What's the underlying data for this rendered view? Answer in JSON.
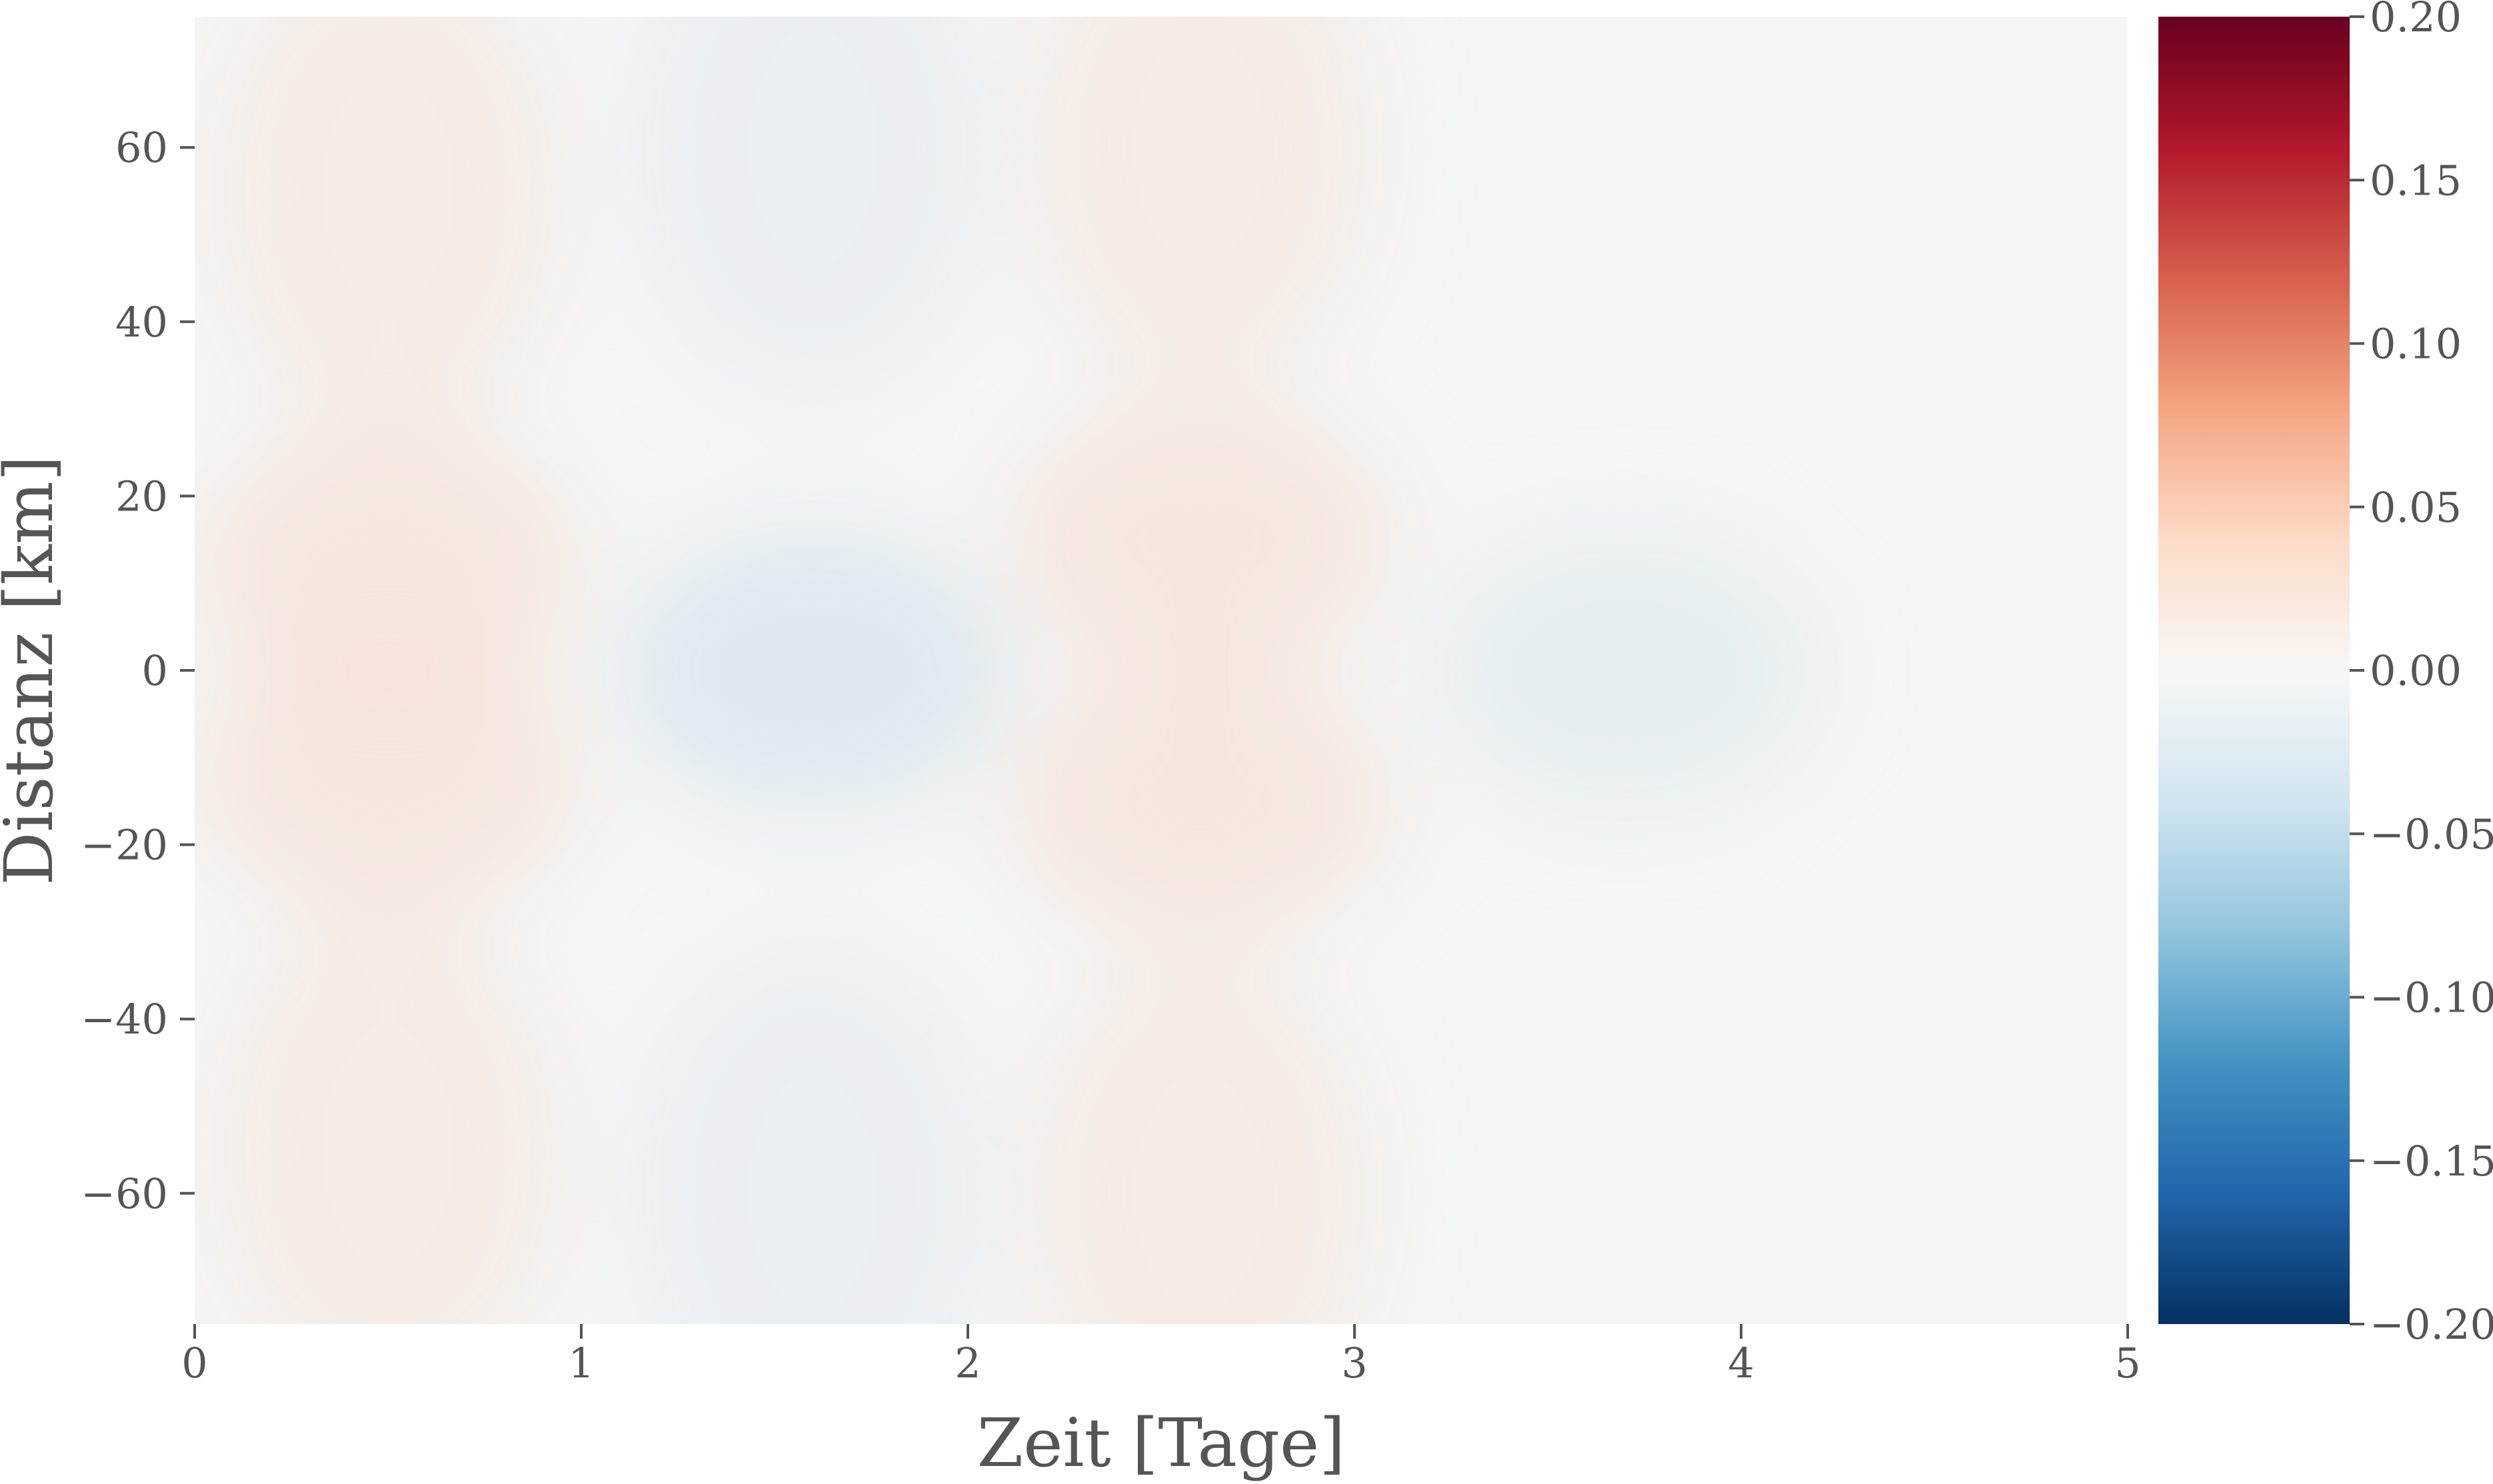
{
  "chart_data": {
    "type": "heatmap",
    "title": "",
    "xlabel": "Zeit [Tage]",
    "ylabel": "Distanz [km]",
    "xlim": [
      0,
      5
    ],
    "ylim": [
      -75,
      75
    ],
    "xticks": [
      0,
      1,
      2,
      3,
      4,
      5
    ],
    "xtick_labels": [
      "0",
      "1",
      "2",
      "3",
      "4",
      "5"
    ],
    "yticks": [
      60,
      40,
      20,
      0,
      -20,
      -40,
      -60
    ],
    "ytick_labels": [
      "60",
      "40",
      "20",
      "0",
      "−20",
      "−40",
      "−60"
    ],
    "grid": false,
    "colormap": "RdBu_r",
    "colorbar": {
      "range": [
        -0.2,
        0.2
      ],
      "ticks": [
        0.2,
        0.15,
        0.1,
        0.05,
        0.0,
        -0.05,
        -0.1,
        -0.15,
        -0.2
      ],
      "tick_labels": [
        "0.20",
        "0.15",
        "0.10",
        "0.05",
        "0.00",
        "−0.05",
        "−0.10",
        "−0.15",
        "−0.20"
      ]
    },
    "field_features": [
      {
        "t": 0.5,
        "d": 12,
        "sign": "+",
        "value": 0.006
      },
      {
        "t": 0.5,
        "d": -12,
        "sign": "+",
        "value": 0.006
      },
      {
        "t": 0.5,
        "d": 55,
        "sign": "+",
        "value": 0.004
      },
      {
        "t": 0.5,
        "d": -55,
        "sign": "+",
        "value": 0.004
      },
      {
        "t": 1.6,
        "d": 0,
        "sign": "-",
        "value": -0.01
      },
      {
        "t": 1.6,
        "d": 60,
        "sign": "-",
        "value": -0.004
      },
      {
        "t": 1.6,
        "d": -60,
        "sign": "-",
        "value": -0.004
      },
      {
        "t": 2.6,
        "d": 15,
        "sign": "+",
        "value": 0.006
      },
      {
        "t": 2.6,
        "d": -15,
        "sign": "+",
        "value": 0.006
      },
      {
        "t": 2.6,
        "d": 60,
        "sign": "+",
        "value": 0.004
      },
      {
        "t": 2.6,
        "d": -60,
        "sign": "+",
        "value": 0.004
      },
      {
        "t": 3.7,
        "d": 0,
        "sign": "-",
        "value": -0.005
      }
    ],
    "background_value": 0.0
  }
}
